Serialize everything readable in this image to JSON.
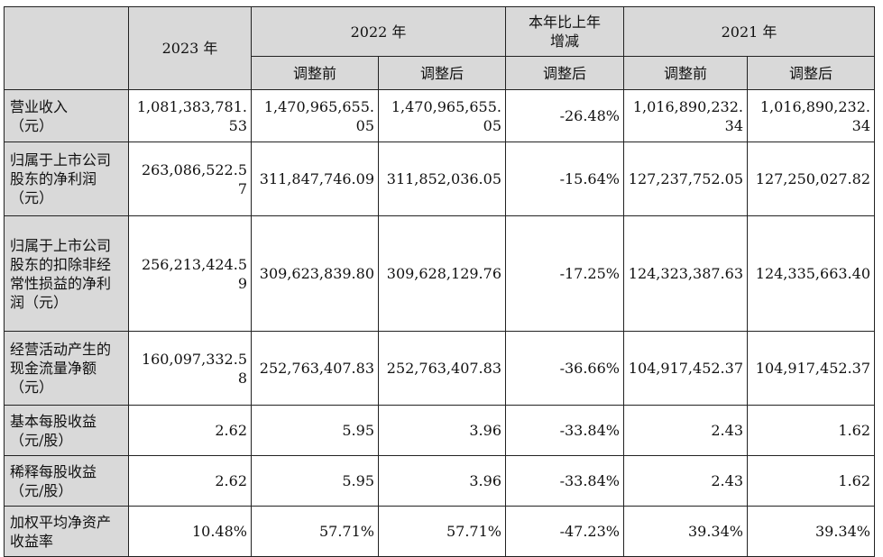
{
  "header": {
    "y2023": "2023 年",
    "y2022": "2022 年",
    "change": "本年比上年\n增减",
    "y2021": "2021 年",
    "before": "调整前",
    "after": "调整后"
  },
  "rows": [
    {
      "label": "营业收入\n（元）",
      "v2023": "1,081,383,781.53",
      "v2022_before": "1,470,965,655.05",
      "v2022_after": "1,470,965,655.05",
      "change": "-26.48%",
      "v2021_before": "1,016,890,232.34",
      "v2021_after": "1,016,890,232.34"
    },
    {
      "label": "归属于上市公司股东的净利润（元）",
      "v2023": "263,086,522.57",
      "v2022_before": "311,847,746.09",
      "v2022_after": "311,852,036.05",
      "change": "-15.64%",
      "v2021_before": "127,237,752.05",
      "v2021_after": "127,250,027.82"
    },
    {
      "label": "归属于上市公司股东的扣除非经常性损益的净利润（元）",
      "v2023": "256,213,424.59",
      "v2022_before": "309,623,839.80",
      "v2022_after": "309,628,129.76",
      "change": "-17.25%",
      "v2021_before": "124,323,387.63",
      "v2021_after": "124,335,663.40"
    },
    {
      "label": "经营活动产生的现金流量净额（元）",
      "v2023": "160,097,332.58",
      "v2022_before": "252,763,407.83",
      "v2022_after": "252,763,407.83",
      "change": "-36.66%",
      "v2021_before": "104,917,452.37",
      "v2021_after": "104,917,452.37"
    },
    {
      "label": "基本每股收益（元/股）",
      "v2023": "2.62",
      "v2022_before": "5.95",
      "v2022_after": "3.96",
      "change": "-33.84%",
      "v2021_before": "2.43",
      "v2021_after": "1.62"
    },
    {
      "label": "稀释每股收益（元/股）",
      "v2023": "2.62",
      "v2022_before": "5.95",
      "v2022_after": "3.96",
      "change": "-33.84%",
      "v2021_before": "2.43",
      "v2021_after": "1.62"
    },
    {
      "label": "加权平均净资产收益率",
      "v2023": "10.48%",
      "v2022_before": "57.71%",
      "v2022_after": "57.71%",
      "change": "-47.23%",
      "v2021_before": "39.34%",
      "v2021_after": "39.34%"
    }
  ]
}
